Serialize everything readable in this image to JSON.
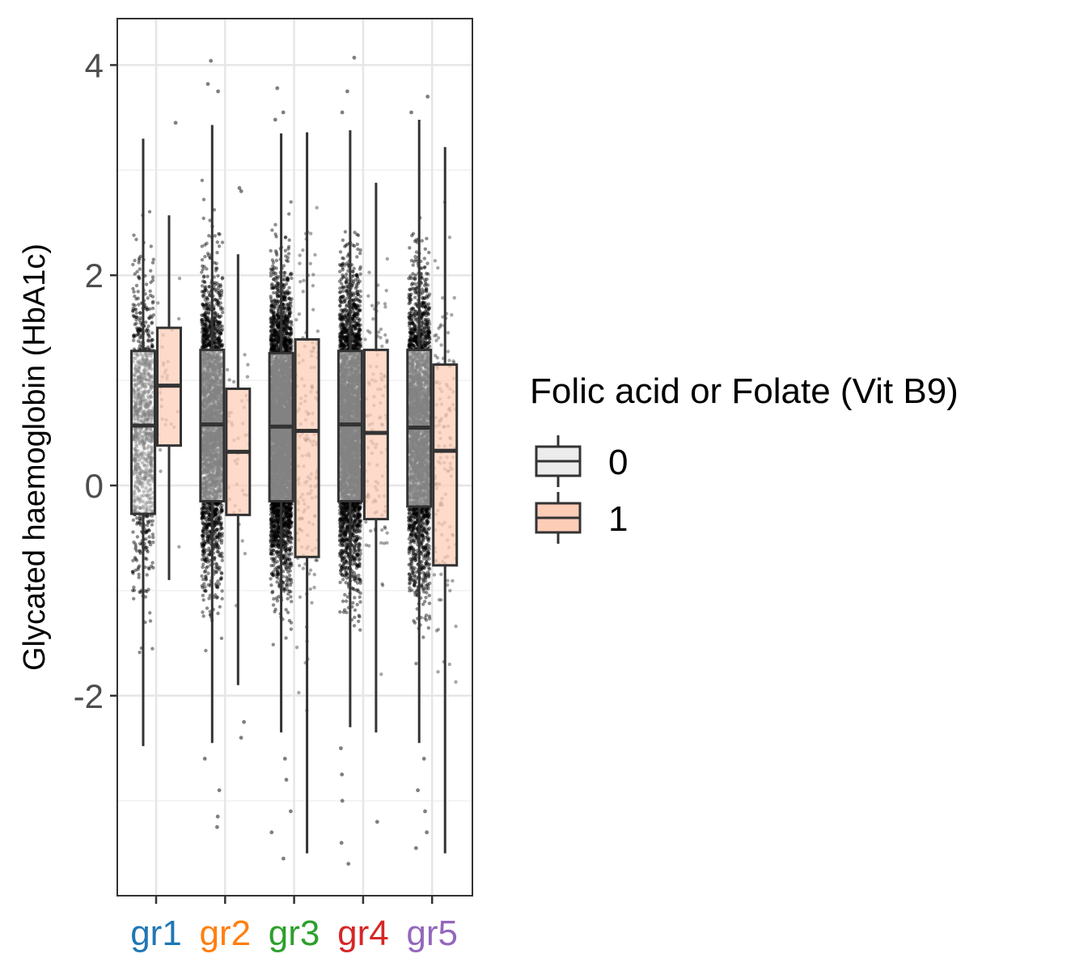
{
  "chart_data": {
    "type": "box",
    "title": "",
    "xlabel": "",
    "ylabel": "Glycated haemoglobin (HbA1c)",
    "ylim": [
      -3.9,
      4.45
    ],
    "yticks": [
      -2,
      0,
      2,
      4
    ],
    "ytick_labels": [
      "-2",
      "0",
      "2",
      "4"
    ],
    "grid": true,
    "categories": [
      "gr1",
      "gr2",
      "gr3",
      "gr4",
      "gr5"
    ],
    "category_colors": [
      "#1f77b4",
      "#ff7f0e",
      "#2ca02c",
      "#d62728",
      "#9467bd"
    ],
    "legend": {
      "title": "Folic acid or Folate (Vit B9)",
      "placement": "right",
      "entries": [
        {
          "label": "0",
          "fill": "#ececec"
        },
        {
          "label": "1",
          "fill": "#fdcdb8"
        }
      ]
    },
    "series": [
      {
        "key": "0",
        "fill": "#ececec",
        "boxes": [
          {
            "whisker_low": -2.48,
            "q1": -0.27,
            "median": 0.57,
            "q3": 1.28,
            "whisker_high": 3.3,
            "points_shown": 900,
            "outliers": []
          },
          {
            "whisker_low": -2.45,
            "q1": -0.15,
            "median": 0.58,
            "q3": 1.29,
            "whisker_high": 3.43,
            "points_shown": 2600,
            "outliers": [
              -2.6,
              -2.9,
              -3.15,
              -3.25,
              3.75,
              3.82,
              4.04
            ]
          },
          {
            "whisker_low": -2.35,
            "q1": -0.15,
            "median": 0.56,
            "q3": 1.26,
            "whisker_high": 3.35,
            "points_shown": 4200,
            "outliers": [
              -2.6,
              -2.8,
              -3.1,
              -3.3,
              -3.55,
              3.48,
              3.55,
              3.78
            ]
          },
          {
            "whisker_low": -2.3,
            "q1": -0.15,
            "median": 0.58,
            "q3": 1.28,
            "whisker_high": 3.38,
            "points_shown": 3700,
            "outliers": [
              -2.5,
              -2.75,
              -3.0,
              -3.4,
              -3.6,
              3.55,
              3.75,
              4.07
            ]
          },
          {
            "whisker_low": -2.45,
            "q1": -0.2,
            "median": 0.55,
            "q3": 1.29,
            "whisker_high": 3.48,
            "points_shown": 2900,
            "outliers": [
              -2.6,
              -2.9,
              -3.1,
              -3.3,
              -3.45,
              3.55,
              3.7
            ]
          }
        ]
      },
      {
        "key": "1",
        "fill": "#fdcdb8",
        "boxes": [
          {
            "whisker_low": -0.9,
            "q1": 0.38,
            "median": 0.95,
            "q3": 1.5,
            "whisker_high": 2.57,
            "points_shown": 28,
            "outliers": [
              3.45
            ]
          },
          {
            "whisker_low": -1.9,
            "q1": -0.28,
            "median": 0.32,
            "q3": 0.92,
            "whisker_high": 2.2,
            "points_shown": 42,
            "outliers": [
              -2.25,
              -2.4,
              2.8,
              2.83
            ]
          },
          {
            "whisker_low": -3.5,
            "q1": -0.68,
            "median": 0.52,
            "q3": 1.39,
            "whisker_high": 3.36,
            "points_shown": 160,
            "outliers": []
          },
          {
            "whisker_low": -2.35,
            "q1": -0.32,
            "median": 0.5,
            "q3": 1.29,
            "whisker_high": 2.88,
            "points_shown": 110,
            "outliers": [
              -3.2
            ]
          },
          {
            "whisker_low": -3.5,
            "q1": -0.76,
            "median": 0.33,
            "q3": 1.15,
            "whisker_high": 3.22,
            "points_shown": 140,
            "outliers": []
          }
        ]
      }
    ]
  }
}
